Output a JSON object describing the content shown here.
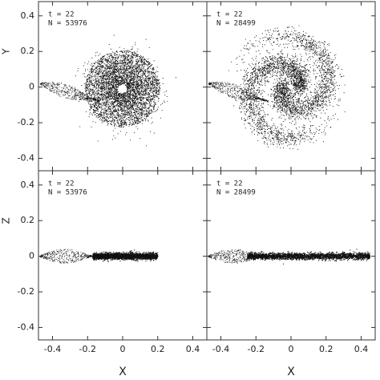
{
  "chart_data": [
    {
      "type": "scatter",
      "cloud": "disk",
      "annotations": [
        "t = 22",
        "N = 53976"
      ],
      "xlim": [
        -0.48,
        0.48
      ],
      "ylim": [
        -0.47,
        0.48
      ],
      "xticks": [
        -0.4,
        -0.2,
        0,
        0.2,
        0.4
      ],
      "yticks": [
        -0.4,
        -0.2,
        0,
        0.2,
        0.4
      ],
      "xtick_labels": false,
      "ytick_labels": true,
      "ylabel": "Y"
    },
    {
      "type": "scatter",
      "cloud": "spiral",
      "annotations": [
        "t = 22",
        "N = 28499"
      ],
      "xlim": [
        -0.48,
        0.48
      ],
      "ylim": [
        -0.47,
        0.48
      ],
      "xticks": [
        -0.4,
        -0.2,
        0,
        0.2,
        0.4
      ],
      "yticks": [
        -0.4,
        -0.2,
        0,
        0.2,
        0.4
      ],
      "xtick_labels": false,
      "ytick_labels": false
    },
    {
      "type": "scatter",
      "cloud": "slab-short",
      "annotations": [
        "t = 22",
        "N = 53976"
      ],
      "xlim": [
        -0.48,
        0.48
      ],
      "ylim": [
        -0.47,
        0.48
      ],
      "xticks": [
        -0.4,
        -0.2,
        0,
        0.2,
        0.4
      ],
      "yticks": [
        -0.4,
        -0.2,
        0,
        0.2,
        0.4
      ],
      "xtick_labels": true,
      "ytick_labels": true,
      "xlabel": "X",
      "ylabel": "Z"
    },
    {
      "type": "scatter",
      "cloud": "slab-long",
      "annotations": [
        "t = 22",
        "N = 28499"
      ],
      "xlim": [
        -0.48,
        0.48
      ],
      "ylim": [
        -0.47,
        0.48
      ],
      "xticks": [
        -0.4,
        -0.2,
        0,
        0.2,
        0.4
      ],
      "yticks": [
        -0.4,
        -0.2,
        0,
        0.2,
        0.4
      ],
      "xtick_labels": true,
      "ytick_labels": false,
      "xlabel": "X"
    }
  ]
}
